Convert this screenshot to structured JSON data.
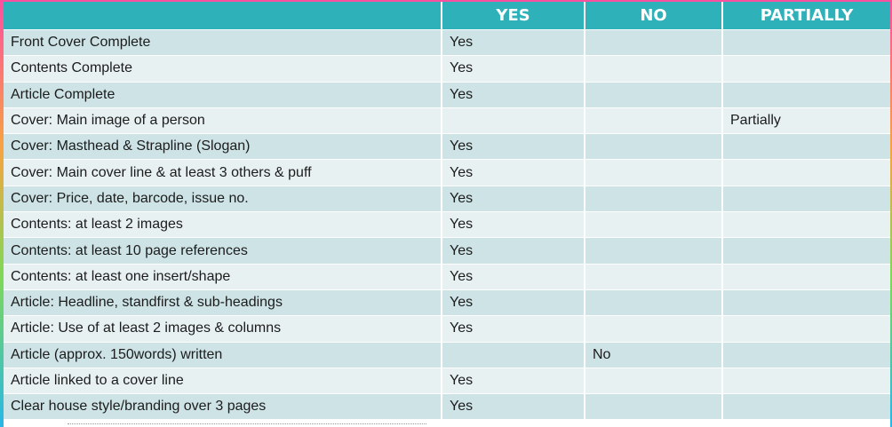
{
  "table": {
    "headers": [
      "",
      "YES",
      "NO",
      "PARTIALLY"
    ],
    "rows": [
      [
        "Front Cover Complete",
        "Yes",
        "",
        ""
      ],
      [
        "Contents Complete",
        "Yes",
        "",
        ""
      ],
      [
        "Article Complete",
        "Yes",
        "",
        ""
      ],
      [
        "Cover: Main image of a person",
        "",
        "",
        "Partially"
      ],
      [
        "Cover: Masthead & Strapline (Slogan)",
        "Yes",
        "",
        ""
      ],
      [
        "Cover: Main cover line & at least 3 others & puff",
        "Yes",
        "",
        ""
      ],
      [
        "Cover: Price, date, barcode, issue no.",
        "Yes",
        "",
        ""
      ],
      [
        "Contents: at least 2 images",
        "Yes",
        "",
        ""
      ],
      [
        "Contents: at least 10 page references",
        "Yes",
        "",
        ""
      ],
      [
        "Contents: at least one insert/shape",
        "Yes",
        "",
        ""
      ],
      [
        "Article: Headline, standfirst & sub-headings",
        "Yes",
        "",
        ""
      ],
      [
        "Article: Use of at least 2 images & columns",
        "Yes",
        "",
        ""
      ],
      [
        "Article (approx. 150words) written",
        "",
        "No",
        ""
      ],
      [
        "Article linked to a cover line",
        "Yes",
        "",
        ""
      ],
      [
        "Clear house style/branding over 3 pages",
        "Yes",
        "",
        ""
      ]
    ]
  },
  "colors": {
    "header_bg": "#2eb1b9",
    "row_dark": "#cde3e6",
    "row_light": "#e8f1f2"
  }
}
